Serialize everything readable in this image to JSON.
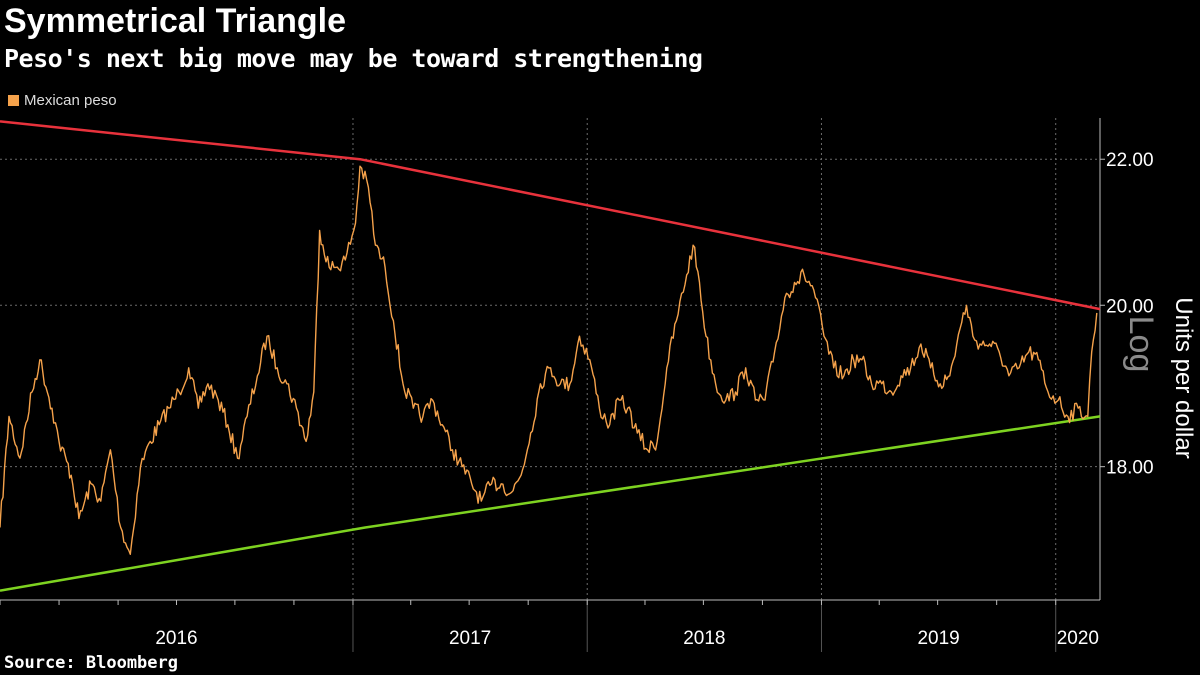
{
  "header": {
    "title": "Symmetrical Triangle",
    "subtitle": "Peso's next big move may be toward strengthening"
  },
  "legend": {
    "label": "Mexican peso",
    "color": "#f5a24b"
  },
  "footer": {
    "source": "Source: Bloomberg"
  },
  "chart_data": {
    "type": "line",
    "title": "Symmetrical Triangle",
    "subtitle": "Peso's next big move may be toward strengthening",
    "ylabel": "Units per dollar",
    "y_scale": "log",
    "y_scale_label": "Log",
    "ylim": [
      16.5,
      22.6
    ],
    "y_ticks": [
      18.0,
      20.0,
      22.0
    ],
    "y_tick_labels": [
      "18.00",
      "20.00",
      "22.00"
    ],
    "x_range": [
      "2015-07-01",
      "2020-03-10"
    ],
    "x_tick_labels": [
      "2016",
      "2017",
      "2018",
      "2019",
      "2020"
    ],
    "grid": true,
    "legend_position": "top-left",
    "series": [
      {
        "name": "Mexican peso",
        "color": "#f5a24b",
        "points": [
          [
            "2015-07-01",
            17.3
          ],
          [
            "2015-07-15",
            18.6
          ],
          [
            "2015-08-01",
            18.1
          ],
          [
            "2015-08-20",
            18.9
          ],
          [
            "2015-09-01",
            19.3
          ],
          [
            "2015-09-20",
            18.7
          ],
          [
            "2015-10-01",
            18.3
          ],
          [
            "2015-10-20",
            17.9
          ],
          [
            "2015-11-01",
            17.4
          ],
          [
            "2015-11-20",
            17.8
          ],
          [
            "2015-12-05",
            17.6
          ],
          [
            "2015-12-20",
            18.2
          ],
          [
            "2016-01-05",
            17.3
          ],
          [
            "2016-01-20",
            17.0
          ],
          [
            "2016-02-05",
            18.0
          ],
          [
            "2016-02-20",
            18.3
          ],
          [
            "2016-03-05",
            18.5
          ],
          [
            "2016-03-20",
            18.7
          ],
          [
            "2016-04-05",
            18.9
          ],
          [
            "2016-04-20",
            19.2
          ],
          [
            "2016-05-05",
            18.7
          ],
          [
            "2016-05-20",
            19.0
          ],
          [
            "2016-06-05",
            18.8
          ],
          [
            "2016-06-20",
            18.5
          ],
          [
            "2016-07-05",
            18.1
          ],
          [
            "2016-07-20",
            18.6
          ],
          [
            "2016-08-05",
            19.1
          ],
          [
            "2016-08-20",
            19.6
          ],
          [
            "2016-09-05",
            19.2
          ],
          [
            "2016-09-20",
            19.0
          ],
          [
            "2016-10-05",
            18.7
          ],
          [
            "2016-10-20",
            18.3
          ],
          [
            "2016-11-01",
            18.9
          ],
          [
            "2016-11-10",
            21.0
          ],
          [
            "2016-11-25",
            20.5
          ],
          [
            "2016-12-05",
            20.5
          ],
          [
            "2016-12-20",
            20.6
          ],
          [
            "2017-01-05",
            21.1
          ],
          [
            "2017-01-12",
            21.9
          ],
          [
            "2017-01-25",
            21.6
          ],
          [
            "2017-02-05",
            20.8
          ],
          [
            "2017-02-20",
            20.5
          ],
          [
            "2017-03-05",
            19.8
          ],
          [
            "2017-03-20",
            19.0
          ],
          [
            "2017-04-05",
            18.7
          ],
          [
            "2017-04-20",
            18.6
          ],
          [
            "2017-05-05",
            18.8
          ],
          [
            "2017-05-20",
            18.5
          ],
          [
            "2017-06-05",
            18.2
          ],
          [
            "2017-06-20",
            18.0
          ],
          [
            "2017-07-05",
            17.8
          ],
          [
            "2017-07-20",
            17.6
          ],
          [
            "2017-08-05",
            17.8
          ],
          [
            "2017-08-20",
            17.8
          ],
          [
            "2017-09-05",
            17.7
          ],
          [
            "2017-09-20",
            17.9
          ],
          [
            "2017-10-05",
            18.4
          ],
          [
            "2017-10-20",
            19.0
          ],
          [
            "2017-11-05",
            19.2
          ],
          [
            "2017-11-20",
            19.0
          ],
          [
            "2017-12-05",
            19.0
          ],
          [
            "2017-12-20",
            19.6
          ],
          [
            "2018-01-05",
            19.3
          ],
          [
            "2018-01-20",
            18.7
          ],
          [
            "2018-02-05",
            18.5
          ],
          [
            "2018-02-20",
            18.8
          ],
          [
            "2018-03-05",
            18.7
          ],
          [
            "2018-03-20",
            18.4
          ],
          [
            "2018-04-05",
            18.2
          ],
          [
            "2018-04-20",
            18.3
          ],
          [
            "2018-05-05",
            19.2
          ],
          [
            "2018-05-20",
            19.8
          ],
          [
            "2018-06-05",
            20.4
          ],
          [
            "2018-06-15",
            20.8
          ],
          [
            "2018-06-25",
            20.3
          ],
          [
            "2018-07-05",
            19.6
          ],
          [
            "2018-07-20",
            19.0
          ],
          [
            "2018-08-05",
            18.8
          ],
          [
            "2018-08-20",
            18.9
          ],
          [
            "2018-09-05",
            19.2
          ],
          [
            "2018-09-20",
            18.8
          ],
          [
            "2018-10-05",
            18.8
          ],
          [
            "2018-10-20",
            19.4
          ],
          [
            "2018-11-05",
            20.1
          ],
          [
            "2018-11-20",
            20.3
          ],
          [
            "2018-12-05",
            20.4
          ],
          [
            "2018-12-20",
            20.2
          ],
          [
            "2019-01-05",
            19.6
          ],
          [
            "2019-01-20",
            19.2
          ],
          [
            "2019-02-05",
            19.1
          ],
          [
            "2019-02-20",
            19.3
          ],
          [
            "2019-03-05",
            19.3
          ],
          [
            "2019-03-20",
            19.0
          ],
          [
            "2019-04-05",
            19.0
          ],
          [
            "2019-04-20",
            18.9
          ],
          [
            "2019-05-05",
            19.1
          ],
          [
            "2019-05-20",
            19.2
          ],
          [
            "2019-06-05",
            19.5
          ],
          [
            "2019-06-20",
            19.2
          ],
          [
            "2019-07-05",
            19.0
          ],
          [
            "2019-07-20",
            19.1
          ],
          [
            "2019-08-05",
            19.7
          ],
          [
            "2019-08-15",
            20.0
          ],
          [
            "2019-08-25",
            19.6
          ],
          [
            "2019-09-05",
            19.5
          ],
          [
            "2019-09-20",
            19.5
          ],
          [
            "2019-10-05",
            19.4
          ],
          [
            "2019-10-20",
            19.1
          ],
          [
            "2019-11-05",
            19.2
          ],
          [
            "2019-11-20",
            19.4
          ],
          [
            "2019-12-05",
            19.3
          ],
          [
            "2019-12-20",
            18.9
          ],
          [
            "2020-01-05",
            18.8
          ],
          [
            "2020-01-20",
            18.6
          ],
          [
            "2020-02-05",
            18.7
          ],
          [
            "2020-02-20",
            18.6
          ],
          [
            "2020-02-26",
            19.4
          ],
          [
            "2020-03-05",
            19.9
          ]
        ]
      },
      {
        "color": "#e8323c",
        "points": [
          [
            "2015-07-01",
            22.55
          ],
          [
            "2017-01-12",
            22.0
          ],
          [
            "2020-03-10",
            19.95
          ]
        ]
      },
      {
        "color": "#7ed321",
        "points": [
          [
            "2015-07-01",
            16.6
          ],
          [
            "2017-01-20",
            17.3
          ],
          [
            "2020-03-10",
            18.6
          ]
        ]
      }
    ]
  }
}
